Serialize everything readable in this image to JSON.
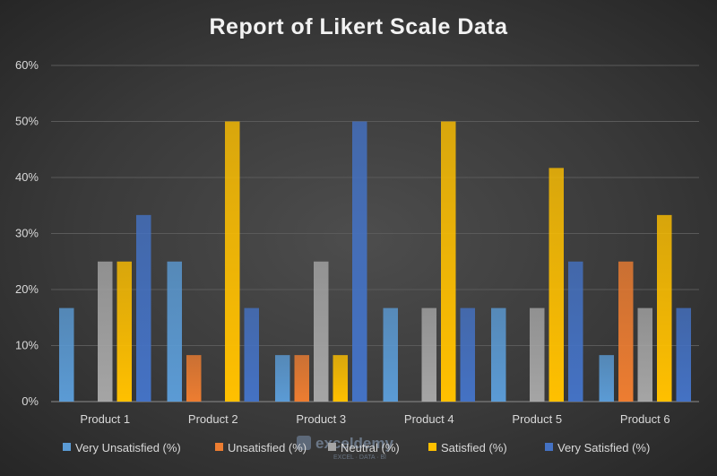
{
  "chart_data": {
    "type": "bar",
    "title": "Report of Likert Scale Data",
    "xlabel": "",
    "ylabel": "",
    "ylim": [
      0,
      60
    ],
    "y_ticks": [
      "0%",
      "10%",
      "20%",
      "30%",
      "40%",
      "50%",
      "60%"
    ],
    "categories": [
      "Product 1",
      "Product 2",
      "Product 3",
      "Product 4",
      "Product 5",
      "Product 6"
    ],
    "series": [
      {
        "name": "Very Unsatisfied (%)",
        "color": "#5b9bd5",
        "values": [
          16.7,
          25,
          8.3,
          16.7,
          16.7,
          8.3
        ]
      },
      {
        "name": "Unsatisfied (%)",
        "color": "#ed7d31",
        "values": [
          0,
          8.3,
          8.3,
          0,
          0,
          25
        ]
      },
      {
        "name": "Neutral (%)",
        "color": "#a5a5a5",
        "values": [
          25,
          0,
          25,
          16.7,
          16.7,
          16.7
        ]
      },
      {
        "name": "Satisfied (%)",
        "color": "#ffc000",
        "values": [
          25,
          50,
          8.3,
          50,
          41.7,
          33.3
        ]
      },
      {
        "name": "Very Satisfied (%)",
        "color": "#4472c4",
        "values": [
          33.3,
          16.7,
          50,
          16.7,
          25,
          16.7
        ]
      }
    ],
    "grid": true,
    "legend_position": "bottom"
  },
  "watermark": {
    "text": "exceldemy",
    "subtext": "EXCEL · DATA · BI"
  }
}
